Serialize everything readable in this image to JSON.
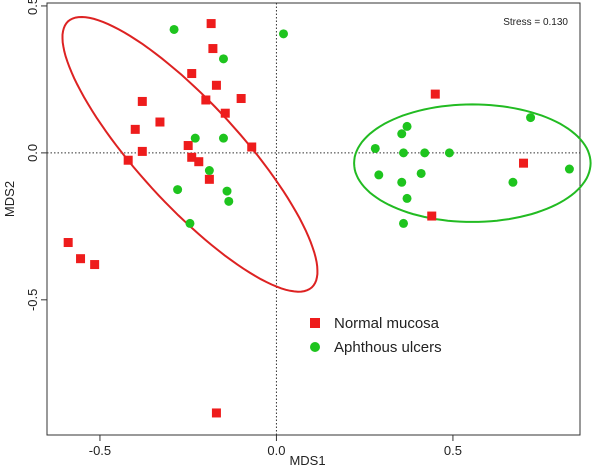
{
  "chart_data": {
    "type": "scatter",
    "xlabel": "MDS1",
    "ylabel": "MDS2",
    "xlim": [
      -0.65,
      0.86
    ],
    "ylim": [
      -0.96,
      0.51
    ],
    "xticks": [
      -0.5,
      0.0,
      0.5
    ],
    "yticks": [
      -0.5,
      0.0,
      0.5
    ],
    "xtick_labels": [
      "-0.5",
      "0.0",
      "0.5"
    ],
    "ytick_labels": [
      "-0.5",
      "0.0",
      "0.5"
    ],
    "annotation": "Stress = 0.130",
    "legend_position": "center-right",
    "reference_lines": {
      "x": 0.0,
      "y": 0.0,
      "style": "dotted"
    },
    "series": [
      {
        "name": "Normal mucosa",
        "marker": "square",
        "color": "#ee1c1c",
        "points": [
          [
            -0.185,
            0.44
          ],
          [
            -0.18,
            0.355
          ],
          [
            -0.24,
            0.27
          ],
          [
            -0.17,
            0.23
          ],
          [
            -0.2,
            0.18
          ],
          [
            -0.1,
            0.185
          ],
          [
            -0.38,
            0.175
          ],
          [
            -0.145,
            0.135
          ],
          [
            -0.33,
            0.105
          ],
          [
            -0.4,
            0.08
          ],
          [
            -0.25,
            0.025
          ],
          [
            -0.07,
            0.02
          ],
          [
            -0.38,
            0.005
          ],
          [
            -0.24,
            -0.015
          ],
          [
            -0.42,
            -0.025
          ],
          [
            -0.22,
            -0.03
          ],
          [
            -0.19,
            -0.09
          ],
          [
            -0.59,
            -0.305
          ],
          [
            -0.555,
            -0.36
          ],
          [
            -0.515,
            -0.38
          ],
          [
            -0.17,
            -0.885
          ],
          [
            0.45,
            0.2
          ],
          [
            0.7,
            -0.035
          ],
          [
            0.44,
            -0.215
          ]
        ]
      },
      {
        "name": "Aphthous ulcers",
        "marker": "circle",
        "color": "#1ec41e",
        "points": [
          [
            -0.29,
            0.42
          ],
          [
            0.02,
            0.405
          ],
          [
            -0.15,
            0.32
          ],
          [
            -0.23,
            0.05
          ],
          [
            -0.15,
            0.05
          ],
          [
            -0.19,
            -0.06
          ],
          [
            -0.28,
            -0.125
          ],
          [
            -0.14,
            -0.13
          ],
          [
            -0.135,
            -0.165
          ],
          [
            -0.245,
            -0.24
          ],
          [
            0.37,
            0.09
          ],
          [
            0.355,
            0.065
          ],
          [
            0.72,
            0.12
          ],
          [
            0.28,
            0.015
          ],
          [
            0.36,
            0.0
          ],
          [
            0.42,
            0.0
          ],
          [
            0.49,
            0.0
          ],
          [
            0.29,
            -0.075
          ],
          [
            0.41,
            -0.07
          ],
          [
            0.355,
            -0.1
          ],
          [
            0.37,
            -0.155
          ],
          [
            0.67,
            -0.1
          ],
          [
            0.83,
            -0.055
          ],
          [
            0.36,
            -0.24
          ]
        ]
      }
    ],
    "ellipses": [
      {
        "group": "Normal mucosa",
        "color": "#dd2222",
        "center": [
          -0.245,
          -0.005
        ],
        "semi_axes": [
          0.57,
          0.155
        ],
        "rotation_deg": -53.5
      },
      {
        "group": "Aphthous ulcers",
        "color": "#22bb22",
        "center": [
          0.555,
          -0.035
        ],
        "semi_axes": [
          0.335,
          0.2
        ],
        "rotation_deg": 0
      }
    ]
  }
}
